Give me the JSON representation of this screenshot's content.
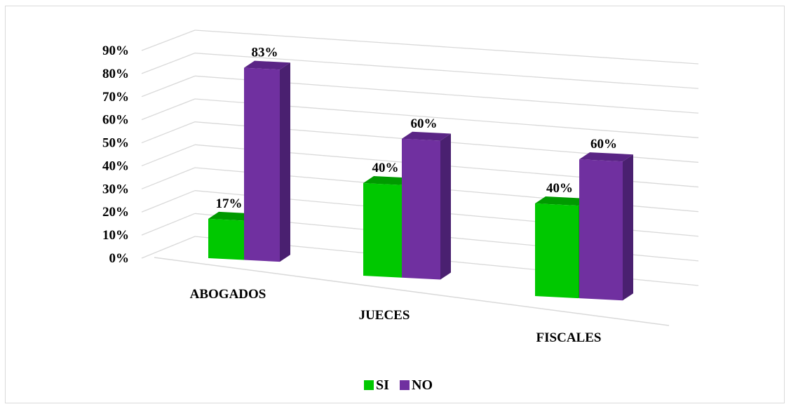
{
  "chart_data": {
    "type": "bar",
    "style": "3d-clustered-column",
    "categories": [
      "ABOGADOS",
      "JUECES",
      "FISCALES"
    ],
    "series": [
      {
        "name": "SI",
        "values": [
          17,
          40,
          40
        ],
        "labels": [
          "17%",
          "40%",
          "40%"
        ],
        "color": "#00c800",
        "side_color": "#00a000",
        "top_color": "#009a00"
      },
      {
        "name": "NO",
        "values": [
          83,
          60,
          60
        ],
        "labels": [
          "83%",
          "60%",
          "60%"
        ],
        "color": "#7030a0",
        "side_color": "#4a2070",
        "top_color": "#5a2585"
      }
    ],
    "y_ticks": [
      "0%",
      "10%",
      "20%",
      "30%",
      "40%",
      "50%",
      "60%",
      "70%",
      "80%",
      "90%"
    ],
    "ylim": [
      0,
      90
    ],
    "grid": true,
    "grid_color": "#d9d9d9",
    "legend_position": "bottom"
  }
}
